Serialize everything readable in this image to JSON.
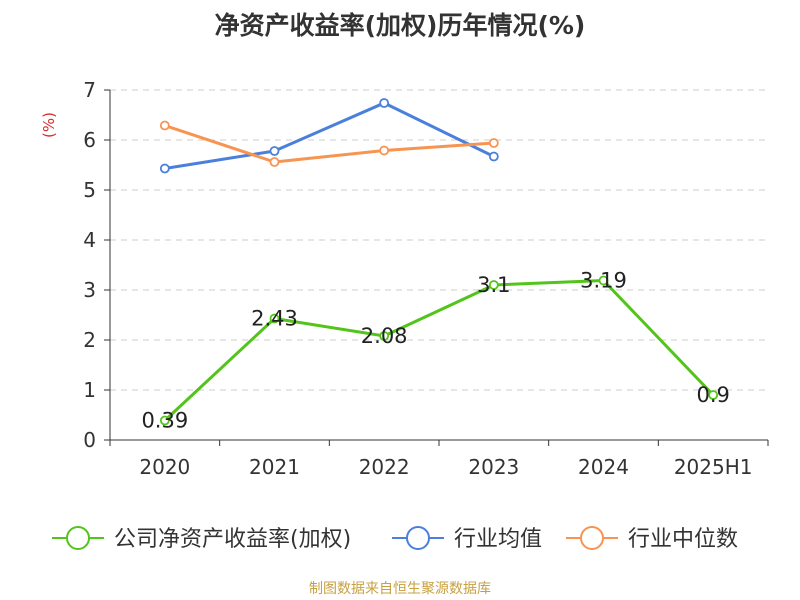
{
  "chart_data": {
    "type": "line",
    "title": "净资产收益率(加权)历年情况(%)",
    "ylabel": "(%)",
    "xlabel": "",
    "categories": [
      "2020",
      "2021",
      "2022",
      "2023",
      "2024",
      "2025H1"
    ],
    "ylim": [
      0,
      7
    ],
    "yticks": [
      0,
      1,
      2,
      3,
      4,
      5,
      6,
      7
    ],
    "grid": true,
    "legend_position": "bottom",
    "series": [
      {
        "name": "公司净资产收益率(加权)",
        "color": "#52c41a",
        "values": [
          0.39,
          2.43,
          2.08,
          3.1,
          3.19,
          0.9
        ],
        "labels": [
          "0.39",
          "2.43",
          "2.08",
          "3.1",
          "3.19",
          "0.9"
        ]
      },
      {
        "name": "行业均值",
        "color": "#4a7fdb",
        "values": [
          5.43,
          5.78,
          6.74,
          5.67,
          null,
          null
        ]
      },
      {
        "name": "行业中位数",
        "color": "#f79452",
        "values": [
          6.29,
          5.56,
          5.79,
          5.94,
          null,
          null
        ]
      }
    ]
  },
  "source": "制图数据来自恒生聚源数据库"
}
